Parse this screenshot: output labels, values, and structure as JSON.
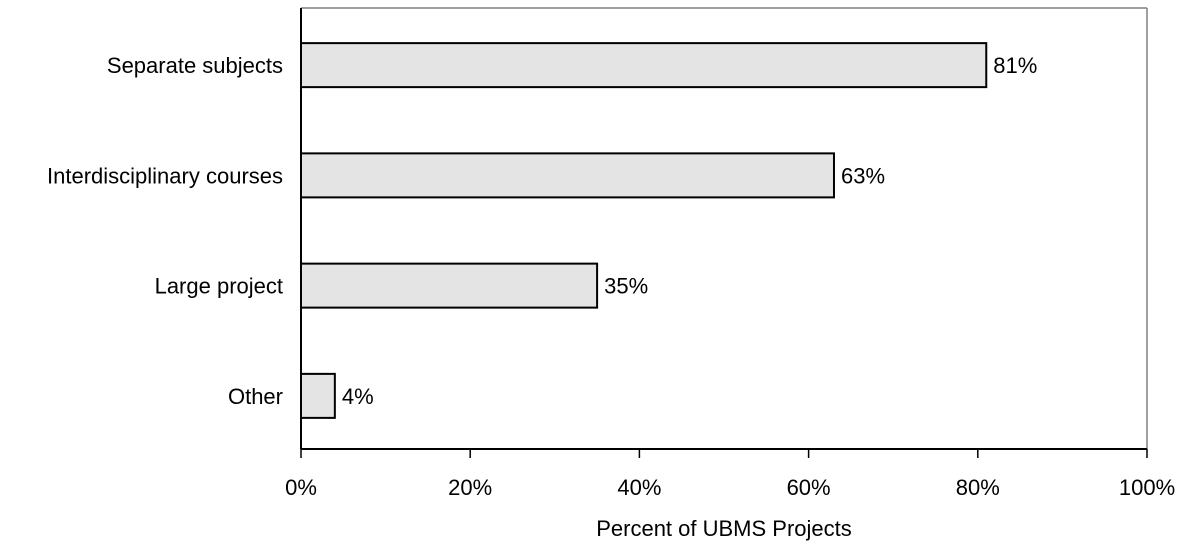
{
  "chart_data": {
    "type": "bar",
    "orientation": "horizontal",
    "categories": [
      "Separate subjects",
      "Interdisciplinary courses",
      "Large project",
      "Other"
    ],
    "values": [
      81,
      63,
      35,
      4
    ],
    "value_labels": [
      "81%",
      "63%",
      "35%",
      "4%"
    ],
    "xlabel": "Percent of UBMS Projects",
    "ylabel": "",
    "xlim": [
      0,
      100
    ],
    "xticks": [
      0,
      20,
      40,
      60,
      80,
      100
    ],
    "xtick_labels": [
      "0%",
      "20%",
      "40%",
      "60%",
      "80%",
      "100%"
    ],
    "grid": false,
    "legend": "none",
    "colors": {
      "bar_fill": "#e4e4e4",
      "bar_stroke": "#000000",
      "axis": "#000000",
      "frame": "#808080"
    }
  }
}
